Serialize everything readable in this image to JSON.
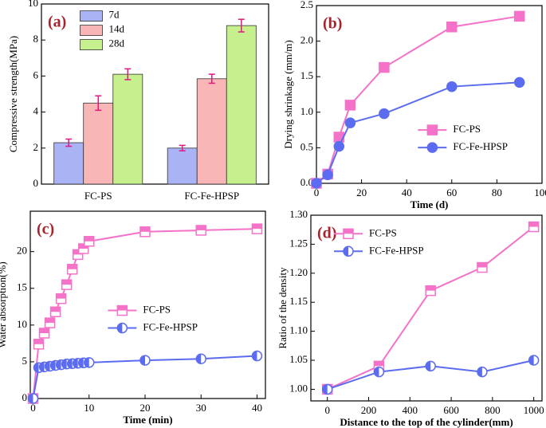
{
  "chart_data": [
    {
      "type": "bar",
      "panel_label": "(a)",
      "ylabel": "Compressive strength(MPa)",
      "categories": [
        "FC-PS",
        "FC-Fe-HPSP"
      ],
      "series": [
        {
          "name": "7d",
          "color": "#aab4f5",
          "values": [
            2.3,
            2.0
          ],
          "errors": [
            0.2,
            0.15
          ]
        },
        {
          "name": "14d",
          "color": "#f9b6b6",
          "values": [
            4.5,
            5.85
          ],
          "errors": [
            0.4,
            0.25
          ]
        },
        {
          "name": "28d",
          "color": "#c6ef8e",
          "values": [
            6.1,
            8.8
          ],
          "errors": [
            0.3,
            0.35
          ]
        }
      ],
      "error_color": "#e0197f",
      "ylim": [
        0,
        10
      ],
      "yticks": [
        0,
        2,
        4,
        6,
        8,
        10
      ],
      "legend": "upper-left"
    },
    {
      "type": "line",
      "panel_label": "(b)",
      "xlabel": "Time (d)",
      "ylabel": "Drying shrinkage (mm/m)",
      "x": [
        0,
        5,
        10,
        15,
        30,
        60,
        90
      ],
      "series": [
        {
          "name": "FC-PS",
          "color": "#f472c8",
          "marker": "square",
          "marker_fill": "full",
          "values": [
            0,
            0.13,
            0.65,
            1.1,
            1.63,
            2.2,
            2.35
          ]
        },
        {
          "name": "FC-Fe-HPSP",
          "color": "#5c6cf0",
          "marker": "circle",
          "marker_fill": "full",
          "values": [
            0,
            0.12,
            0.52,
            0.85,
            0.98,
            1.36,
            1.42
          ]
        }
      ],
      "xlim": [
        0,
        100
      ],
      "xticks": [
        0,
        20,
        40,
        60,
        80,
        100
      ],
      "ylim": [
        0,
        2.5
      ],
      "yticks": [
        {
          "value": 0,
          "label": "0.0"
        },
        0.5,
        {
          "value": 1,
          "label": "1.0"
        },
        1.5,
        {
          "value": 2,
          "label": "2.0"
        },
        2.5
      ],
      "legend": "center-right"
    },
    {
      "type": "line",
      "panel_label": "(c)",
      "xlabel": "Time (min)",
      "ylabel": "Water absorption(%)",
      "x": [
        0,
        1,
        2,
        3,
        4,
        5,
        6,
        7,
        8,
        9,
        10,
        20,
        30,
        40
      ],
      "series": [
        {
          "name": "FC-PS",
          "color": "#f472c8",
          "marker": "square",
          "marker_fill": "half",
          "values": [
            0,
            7.4,
            8.9,
            10.3,
            11.8,
            13.6,
            15.5,
            17.6,
            19.6,
            20.4,
            21.4,
            22.7,
            22.9,
            23.1
          ]
        },
        {
          "name": "FC-Fe-HPSP",
          "color": "#5c6cf0",
          "marker": "circle",
          "marker_fill": "half",
          "values": [
            0,
            4.2,
            4.3,
            4.4,
            4.5,
            4.6,
            4.7,
            4.75,
            4.8,
            4.85,
            4.9,
            5.2,
            5.4,
            5.8
          ]
        }
      ],
      "xlim": [
        -0.5,
        41.5
      ],
      "xticks": [
        0,
        10,
        20,
        30,
        40
      ],
      "ylim": [
        0,
        25.5
      ],
      "yticks": [
        0,
        5,
        10,
        15,
        20
      ],
      "legend": "center"
    },
    {
      "type": "line",
      "panel_label": "(d)",
      "xlabel": "Distance to the top of the cylinder(mm)",
      "ylabel": "Ratio of the density",
      "x": [
        0,
        250,
        500,
        750,
        1000
      ],
      "series": [
        {
          "name": "FC-PS",
          "color": "#f472c8",
          "marker": "square",
          "marker_fill": "half",
          "values": [
            1.0,
            1.04,
            1.17,
            1.21,
            1.28
          ]
        },
        {
          "name": "FC-Fe-HPSP",
          "color": "#5c6cf0",
          "marker": "circle",
          "marker_fill": "half",
          "values": [
            1.0,
            1.03,
            1.04,
            1.03,
            1.05
          ]
        }
      ],
      "xlim": [
        -80,
        1040
      ],
      "xticks": [
        0,
        200,
        400,
        600,
        800,
        1000
      ],
      "ylim": [
        0.98,
        1.3
      ],
      "yticks": [
        {
          "value": 1,
          "label": "1.00"
        },
        1.05,
        {
          "value": 1.1,
          "label": "1.10"
        },
        1.15,
        {
          "value": 1.2,
          "label": "1.20"
        },
        1.25,
        {
          "value": 1.3,
          "label": "1.30"
        }
      ],
      "legend": "upper-left"
    }
  ]
}
